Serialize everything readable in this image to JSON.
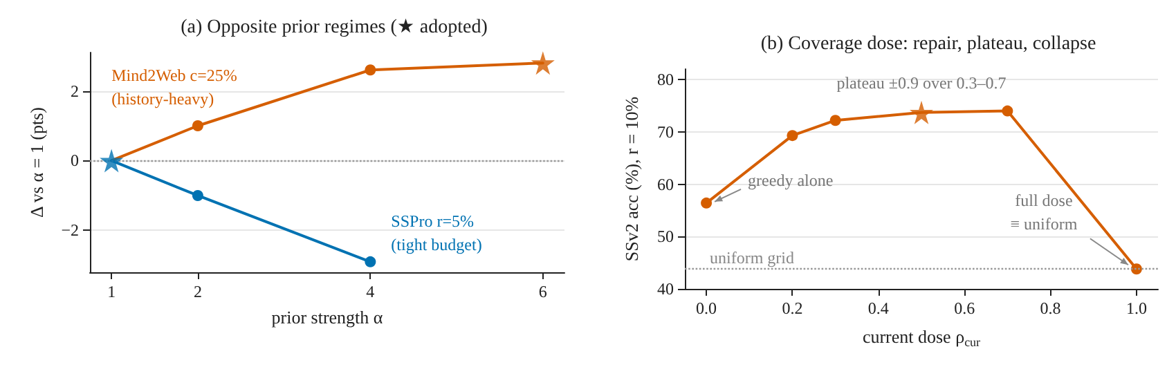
{
  "chart_data": [
    {
      "type": "line",
      "title": "(a) Opposite prior regimes (★ adopted)",
      "xlabel": "prior strength α",
      "ylabel": "Δ vs α = 1 (pts)",
      "series": [
        {
          "name": "Mind2Web c=25%\n(history-heavy)",
          "color": "#d55e00",
          "x": [
            1,
            2,
            4,
            6
          ],
          "values": [
            0,
            1.0,
            2.6,
            2.8
          ]
        },
        {
          "name": "SSPro r=5%\n(tight budget)",
          "color": "#0072b2",
          "x": [
            1,
            2,
            4
          ],
          "values": [
            0,
            -1.0,
            -2.9
          ]
        },
        {
          "type": "scatter",
          "marker": "star",
          "color": "#d55e00",
          "x": [
            6
          ],
          "values": [
            2.8
          ]
        },
        {
          "type": "scatter",
          "marker": "star",
          "color": "#0072b2",
          "x": [
            1
          ],
          "values": [
            0
          ]
        }
      ],
      "marker": "circle",
      "line_style": "solid",
      "xlim": [
        0.75,
        6.25
      ],
      "xticks": [
        1,
        2,
        4,
        6
      ],
      "ylim": [
        -3.2,
        3.1
      ],
      "yticks": [
        {
          "value": -2,
          "label": "−2"
        },
        0,
        2
      ],
      "ref_lines": [
        {
          "axis": "y",
          "value": 0,
          "color": "#999999",
          "line_style": "dotted"
        }
      ],
      "grid": "y"
    },
    {
      "type": "line",
      "title": "(b) Coverage dose: repair, plateau, collapse",
      "xlabel": "current dose ρ$_{cur}$",
      "ylabel": "SSv2 acc (%), r = 10%",
      "series": [
        {
          "color": "#d55e00",
          "x": [
            0,
            0.2,
            0.3,
            0.5,
            0.7,
            1.0
          ],
          "values": [
            56.4,
            69.3,
            72.2,
            73.7,
            74.0,
            43.8
          ]
        },
        {
          "type": "scatter",
          "marker": "star",
          "color": "#d55e00",
          "x": [
            0.5
          ],
          "values": [
            73.7
          ]
        }
      ],
      "marker": "circle",
      "line_style": "solid",
      "xlim": [
        -0.05,
        1.05
      ],
      "xticks": [
        {
          "value": 0,
          "label": "0.0"
        },
        0.2,
        0.4,
        0.6,
        0.8,
        {
          "value": 1,
          "label": "1.0"
        }
      ],
      "ylim": [
        40,
        82
      ],
      "yticks": [
        40,
        50,
        60,
        70,
        80
      ],
      "ref_lines": [
        {
          "axis": "y",
          "value": 43.8,
          "label": "uniform grid",
          "color": "#999999",
          "line_style": "dotted"
        }
      ],
      "annotations": [
        "plateau ±0.9 over 0.3–0.7",
        {
          "text": "greedy alone",
          "x": 0,
          "y": 56.4
        },
        {
          "text": "full dose\n≡ uniform",
          "x": 1.0,
          "y": 43.8
        }
      ],
      "grid": "y"
    }
  ]
}
